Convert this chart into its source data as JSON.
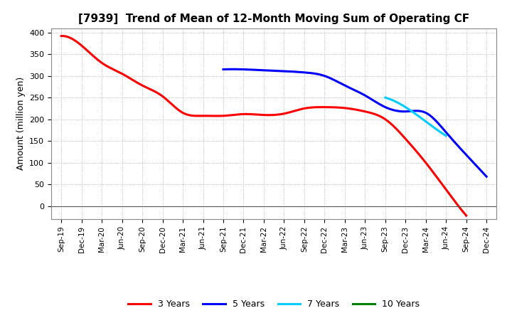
{
  "title": "[7939]  Trend of Mean of 12-Month Moving Sum of Operating CF",
  "ylabel": "Amount (million yen)",
  "background_color": "#ffffff",
  "grid_color": "#aaaaaa",
  "ylim": [
    -30,
    410
  ],
  "yticks": [
    0,
    50,
    100,
    150,
    200,
    250,
    300,
    350,
    400
  ],
  "x_labels": [
    "Sep-19",
    "Dec-19",
    "Mar-20",
    "Jun-20",
    "Sep-20",
    "Dec-20",
    "Mar-21",
    "Jun-21",
    "Sep-21",
    "Dec-21",
    "Mar-22",
    "Jun-22",
    "Sep-22",
    "Dec-22",
    "Mar-23",
    "Jun-23",
    "Sep-23",
    "Dec-23",
    "Mar-24",
    "Jun-24",
    "Sep-24",
    "Dec-24"
  ],
  "series": {
    "3 Years": {
      "color": "#ff0000",
      "indices": [
        0,
        1,
        2,
        3,
        4,
        5,
        6,
        7,
        8,
        9,
        10,
        11,
        12,
        13,
        14,
        15,
        16,
        17,
        18,
        19,
        20
      ],
      "values": [
        392,
        370,
        330,
        305,
        278,
        253,
        215,
        208,
        208,
        212,
        210,
        213,
        225,
        228,
        226,
        218,
        200,
        155,
        100,
        38,
        -22
      ]
    },
    "5 Years": {
      "color": "#0000ff",
      "indices": [
        8,
        9,
        10,
        11,
        12,
        13,
        14,
        15,
        16,
        17,
        18,
        19,
        20,
        21
      ],
      "values": [
        315,
        315,
        313,
        311,
        308,
        300,
        278,
        255,
        228,
        218,
        215,
        170,
        118,
        68
      ]
    },
    "7 Years": {
      "color": "#00ccff",
      "indices": [
        16,
        17,
        18,
        19
      ],
      "values": [
        250,
        228,
        195,
        162
      ]
    },
    "10 Years": {
      "color": "#008000",
      "indices": [],
      "values": []
    }
  },
  "legend": {
    "labels": [
      "3 Years",
      "5 Years",
      "7 Years",
      "10 Years"
    ],
    "colors": [
      "#ff0000",
      "#0000ff",
      "#00ccff",
      "#008000"
    ]
  }
}
